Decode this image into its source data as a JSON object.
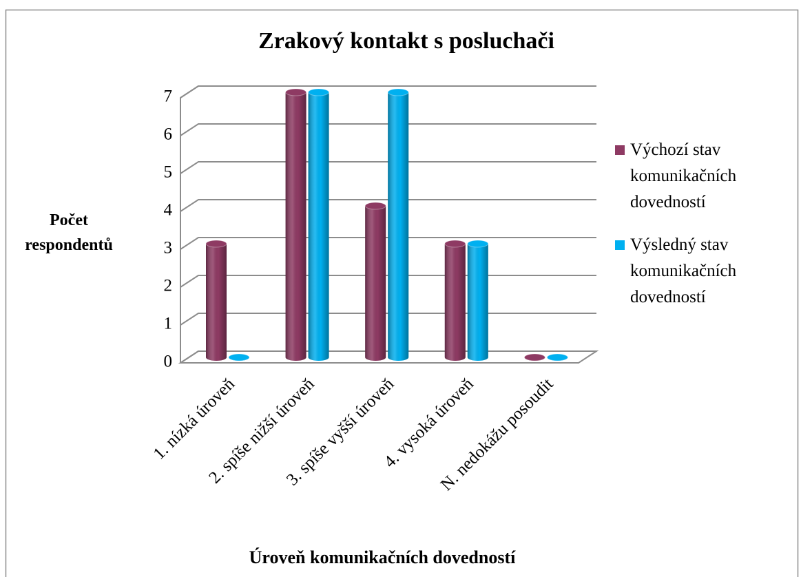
{
  "chart_data": {
    "type": "bar3d",
    "title": "Zrakový  kontakt s posluchači",
    "y_label": "Počet respondentů",
    "x_label": "Úroveň komunikačních dovedností",
    "categories": [
      "1. nízká úroveň",
      "2. spíše nižší úroveň",
      "3. spíše vyšší úroveň",
      "4. vysoká úroveň",
      "N. nedokážu posoudit"
    ],
    "series": [
      {
        "name": "Výchozí stav komunikačních dovedností",
        "color": "#8e3a63",
        "values": [
          3,
          7,
          4,
          3,
          0
        ]
      },
      {
        "name": "Výsledný stav komunikačních dovedností",
        "color": "#00b0f0",
        "values": [
          0,
          7,
          7,
          3,
          0
        ]
      }
    ],
    "ylim": [
      0,
      7
    ],
    "yticks": [
      0,
      1,
      2,
      3,
      4,
      5,
      6,
      7
    ],
    "grid": true,
    "legend": "right"
  }
}
